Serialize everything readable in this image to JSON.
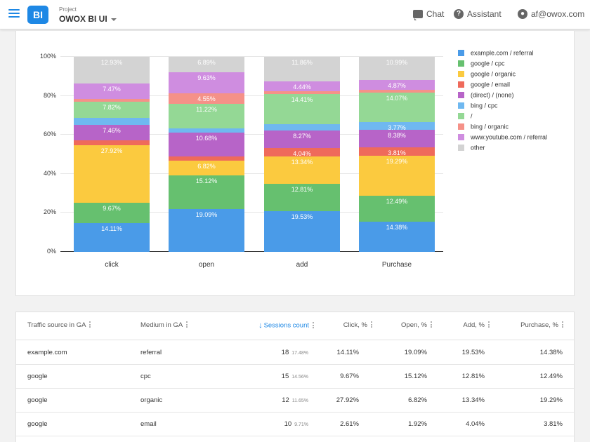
{
  "header": {
    "logo_text": "BI",
    "project_label": "Project",
    "project_name": "OWOX BI UI",
    "chat_label": "Chat",
    "assistant_label": "Assistant",
    "account_email": "af@owox.com"
  },
  "chart_data": {
    "type": "bar",
    "stacked": true,
    "normalized": true,
    "categories": [
      "click",
      "open",
      "add",
      "Purchase"
    ],
    "yticks": [
      "0%",
      "20%",
      "40%",
      "60%",
      "80%",
      "100%"
    ],
    "ylim": [
      0,
      100
    ],
    "grid": true,
    "legend_position": "right",
    "series": [
      {
        "name": "example.com / referral",
        "color": "#4a9be8",
        "values": [
          14.11,
          19.09,
          19.53,
          14.38
        ],
        "labels": [
          "14.11%",
          "19.09%",
          "19.53%",
          "14.38%"
        ]
      },
      {
        "name": "google / cpc",
        "color": "#66c06f",
        "values": [
          9.67,
          15.12,
          12.81,
          12.49
        ],
        "labels": [
          "9.67%",
          "15.12%",
          "12.81%",
          "12.49%"
        ]
      },
      {
        "name": "google / organic",
        "color": "#fbca3f",
        "values": [
          27.92,
          6.82,
          13.34,
          19.29
        ],
        "labels": [
          "27.92%",
          "6.82%",
          "13.34%",
          "19.29%"
        ]
      },
      {
        "name": "google / email",
        "color": "#ef6a5b",
        "values": [
          2.61,
          1.92,
          4.04,
          3.81
        ],
        "labels": [
          "",
          "",
          "4.04%",
          "3.81%"
        ]
      },
      {
        "name": "(direct) / (none)",
        "color": "#b764c8",
        "values": [
          7.46,
          10.68,
          8.27,
          8.38
        ],
        "labels": [
          "7.46%",
          "10.68%",
          "8.27%",
          "8.38%"
        ]
      },
      {
        "name": "bing / cpc",
        "color": "#6fb8f0",
        "values": [
          3.2,
          1.7,
          3.1,
          3.77
        ],
        "labels": [
          "",
          "",
          "",
          "3.77%"
        ]
      },
      {
        "name": "/",
        "color": "#94d895",
        "values": [
          7.82,
          11.22,
          14.41,
          14.07
        ],
        "labels": [
          "7.82%",
          "11.22%",
          "14.41%",
          "14.07%"
        ]
      },
      {
        "name": "bing / organic",
        "color": "#f59188",
        "values": [
          1.5,
          4.55,
          1.3,
          1.3
        ],
        "labels": [
          "",
          "4.55%",
          "",
          ""
        ]
      },
      {
        "name": "www.youtube.com / referral",
        "color": "#cf8de0",
        "values": [
          7.47,
          9.63,
          4.44,
          4.87
        ],
        "labels": [
          "7.47%",
          "9.63%",
          "4.44%",
          "4.87%"
        ]
      },
      {
        "name": "other",
        "color": "#d3d3d3",
        "values": [
          12.93,
          6.89,
          11.86,
          10.99
        ],
        "labels": [
          "12.93%",
          "6.89%",
          "11.86%",
          "10.99%"
        ]
      }
    ]
  },
  "table": {
    "columns": [
      {
        "label": "Traffic source in GA"
      },
      {
        "label": "Medium in GA"
      },
      {
        "label": "Sessions count",
        "sorted": "desc"
      },
      {
        "label": "Click, %"
      },
      {
        "label": "Open, %"
      },
      {
        "label": "Add, %"
      },
      {
        "label": "Purchase, %"
      }
    ],
    "rows": [
      {
        "source": "example.com",
        "medium": "referral",
        "sessions": "18",
        "sessions_pct": "17.48%",
        "click": "14.11%",
        "open": "19.09%",
        "add": "19.53%",
        "purchase": "14.38%"
      },
      {
        "source": "google",
        "medium": "cpc",
        "sessions": "15",
        "sessions_pct": "14.56%",
        "click": "9.67%",
        "open": "15.12%",
        "add": "12.81%",
        "purchase": "12.49%"
      },
      {
        "source": "google",
        "medium": "organic",
        "sessions": "12",
        "sessions_pct": "11.65%",
        "click": "27.92%",
        "open": "6.82%",
        "add": "13.34%",
        "purchase": "19.29%"
      },
      {
        "source": "google",
        "medium": "email",
        "sessions": "10",
        "sessions_pct": "9.71%",
        "click": "2.61%",
        "open": "1.92%",
        "add": "4.04%",
        "purchase": "3.81%"
      }
    ]
  }
}
